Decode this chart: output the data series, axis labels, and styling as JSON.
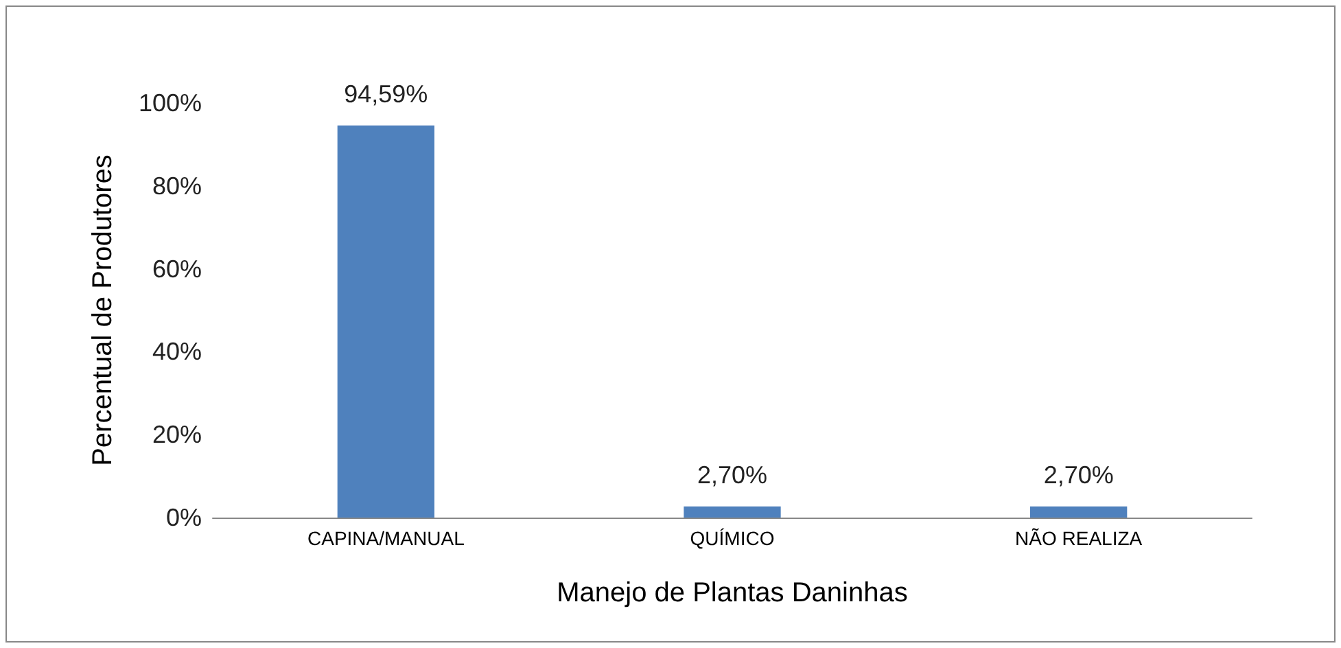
{
  "chart_data": {
    "type": "bar",
    "xlabel": "Manejo de Plantas Daninhas",
    "ylabel": "Percentual de Produtores",
    "categories": [
      "CAPINA/MANUAL",
      "QUÍMICO",
      "NÃO REALIZA"
    ],
    "values": [
      94.59,
      2.7,
      2.7
    ],
    "value_labels": [
      "94,59%",
      "2,70%",
      "2,70%"
    ],
    "color": "#4f81bd",
    "ylim": [
      0,
      100
    ],
    "yticks": [
      {
        "value": 0,
        "label": "0%"
      },
      {
        "value": 20,
        "label": "20%"
      },
      {
        "value": 40,
        "label": "40%"
      },
      {
        "value": 60,
        "label": "60%"
      },
      {
        "value": 80,
        "label": "80%"
      },
      {
        "value": 100,
        "label": "100%"
      }
    ],
    "grid": false
  }
}
